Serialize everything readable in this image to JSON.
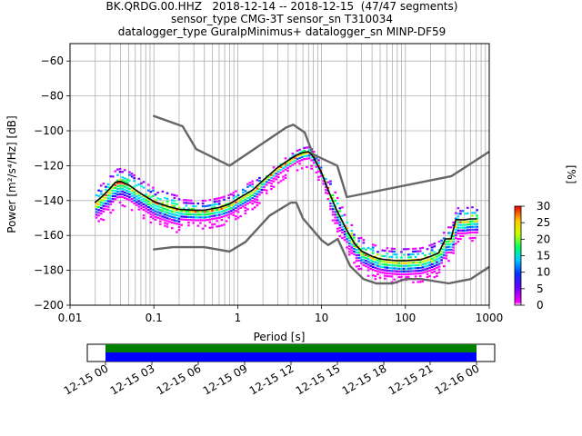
{
  "header": {
    "title_lines": [
      "BK.QRDG.00.HHZ   2018-12-14 -- 2018-12-15  (47/47 segments)",
      "sensor_type CMG-3T sensor_sn T310034",
      "datalogger_type GuralpMinimus+ datalogger_sn MINP-DF59"
    ]
  },
  "chart_data": [
    {
      "type": "heatmap",
      "subtype": "probabilistic-power-spectral-density",
      "xlabel": "Period [s]",
      "ylabel": "Power [m²/s⁴/Hz] [dB]",
      "xscale": "log",
      "xlim": [
        0.01,
        1000
      ],
      "ylim": [
        -200,
        -50
      ],
      "xticks": [
        "0.01",
        "0.1",
        "1",
        "10",
        "100",
        "1000"
      ],
      "yticks": [
        "−60",
        "−80",
        "−100",
        "−120",
        "−140",
        "−160",
        "−180",
        "−200"
      ],
      "grid": true,
      "series": [
        {
          "name": "",
          "style": "gray",
          "x": [
            0.1,
            0.22,
            0.32,
            0.8,
            3.8,
            4.6,
            6.3,
            7.9,
            15.4,
            20,
            354.8,
            1000
          ],
          "y": [
            -91.5,
            -97.4,
            -110.5,
            -120,
            -98,
            -96.5,
            -101,
            -113.5,
            -120,
            -138,
            -126,
            -112
          ]
        },
        {
          "name": "",
          "style": "gray",
          "x": [
            0.1,
            0.17,
            0.4,
            0.8,
            1.24,
            2.4,
            4.3,
            5,
            6,
            10,
            12,
            15.6,
            21.9,
            31.6,
            45,
            70,
            101,
            154,
            328,
            600,
            1000
          ],
          "y": [
            -168,
            -166.7,
            -166.7,
            -169.2,
            -163.7,
            -148.6,
            -141.2,
            -141.2,
            -150.2,
            -162.7,
            -165.5,
            -162,
            -177.5,
            -185,
            -187.5,
            -187.5,
            -185,
            -185,
            -187.5,
            -185,
            -178
          ]
        },
        {
          "name": "",
          "style": "black",
          "x": [
            0.02,
            0.025,
            0.03,
            0.035,
            0.04,
            0.05,
            0.07,
            0.1,
            0.15,
            0.2,
            0.3,
            0.4,
            0.6,
            0.8,
            1,
            1.5,
            2,
            3,
            4,
            5,
            6,
            7,
            8,
            10,
            12,
            15,
            20,
            25,
            30,
            40,
            50,
            60,
            80,
            100,
            150,
            200,
            250,
            300,
            350,
            400,
            500,
            600,
            700
          ],
          "y": [
            -141,
            -137,
            -133,
            -129.5,
            -129,
            -131,
            -136,
            -140.5,
            -143.5,
            -145,
            -145.5,
            -145.5,
            -144,
            -142,
            -139,
            -134,
            -128.5,
            -121,
            -117,
            -114,
            -112.5,
            -112,
            -115,
            -124,
            -134,
            -145,
            -157,
            -165,
            -169,
            -172,
            -173.5,
            -174,
            -174.5,
            -174.5,
            -174,
            -172,
            -170,
            -162,
            -162,
            -151,
            -151,
            -150.5,
            -150.5
          ]
        }
      ],
      "colorbar": {
        "label": "[%]",
        "range": [
          0,
          30
        ],
        "ticks": [
          "0",
          "5",
          "10",
          "15",
          "20",
          "25",
          "30"
        ]
      }
    },
    {
      "type": "bar",
      "subtype": "data-coverage-timeline",
      "xlim": [
        "12-15 00",
        "12-16 00"
      ],
      "xticks": [
        "12-15 00",
        "12-15 03",
        "12-15 06",
        "12-15 09",
        "12-15 12",
        "12-15 15",
        "12-15 18",
        "12-15 21",
        "12-16 00"
      ],
      "series": [
        {
          "name": "",
          "color": "#008000",
          "start": "12-15 00",
          "end": "12-16 00"
        },
        {
          "name": "",
          "color": "#0000ff",
          "start": "12-15 00",
          "end": "12-16 00"
        }
      ]
    }
  ]
}
